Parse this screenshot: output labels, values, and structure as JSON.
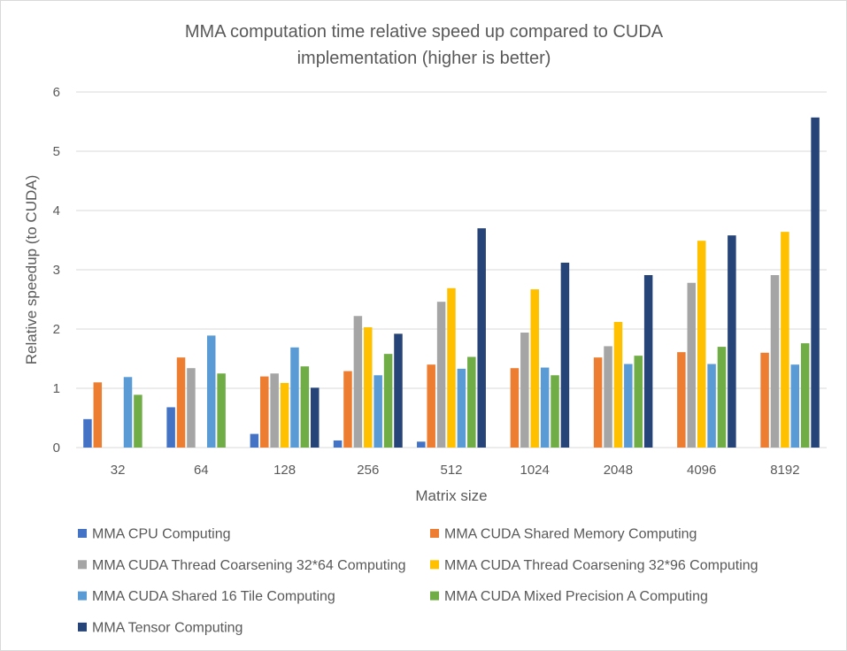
{
  "chart_data": {
    "type": "bar",
    "title": "MMA computation time relative speed up compared to CUDA implementation (higher is better)",
    "title_lines": [
      "MMA computation time relative speed up compared to CUDA",
      "implementation (higher is better)"
    ],
    "xlabel": "Matrix size",
    "ylabel": "Relative speedup (to CUDA)",
    "ylim": [
      0,
      6
    ],
    "yticks": [
      "0",
      "1",
      "2",
      "3",
      "4",
      "5",
      "6"
    ],
    "grid": true,
    "legend_position": "bottom",
    "categories": [
      "32",
      "64",
      "128",
      "256",
      "512",
      "1024",
      "2048",
      "4096",
      "8192"
    ],
    "series": [
      {
        "name": "MMA CPU Computing",
        "color": "#4472c4",
        "values": [
          0.48,
          0.68,
          0.23,
          0.12,
          0.1,
          0,
          0,
          0,
          0
        ]
      },
      {
        "name": "MMA CUDA Shared Memory Computing",
        "color": "#ed7d31",
        "values": [
          1.1,
          1.52,
          1.2,
          1.29,
          1.4,
          1.34,
          1.52,
          1.61,
          1.6
        ]
      },
      {
        "name": "MMA CUDA Thread Coarsening 32*64 Computing",
        "color": "#a5a5a5",
        "values": [
          0,
          1.34,
          1.25,
          2.22,
          2.46,
          1.94,
          1.71,
          2.78,
          2.91
        ]
      },
      {
        "name": "MMA CUDA Thread Coarsening 32*96 Computing",
        "color": "#ffc000",
        "values": [
          0,
          0,
          1.09,
          2.03,
          2.69,
          2.67,
          2.12,
          3.49,
          3.64
        ]
      },
      {
        "name": "MMA CUDA Shared 16 Tile Computing",
        "color": "#5b9bd5",
        "values": [
          1.19,
          1.89,
          1.69,
          1.22,
          1.33,
          1.35,
          1.41,
          1.41,
          1.4
        ]
      },
      {
        "name": "MMA CUDA Mixed Precision A Computing",
        "color": "#70ad47",
        "values": [
          0.89,
          1.25,
          1.37,
          1.58,
          1.53,
          1.22,
          1.55,
          1.7,
          1.76
        ]
      },
      {
        "name": "MMA Tensor Computing",
        "color": "#264478",
        "values": [
          0,
          0,
          1.01,
          1.92,
          3.7,
          3.12,
          2.91,
          3.58,
          5.57
        ]
      }
    ]
  }
}
